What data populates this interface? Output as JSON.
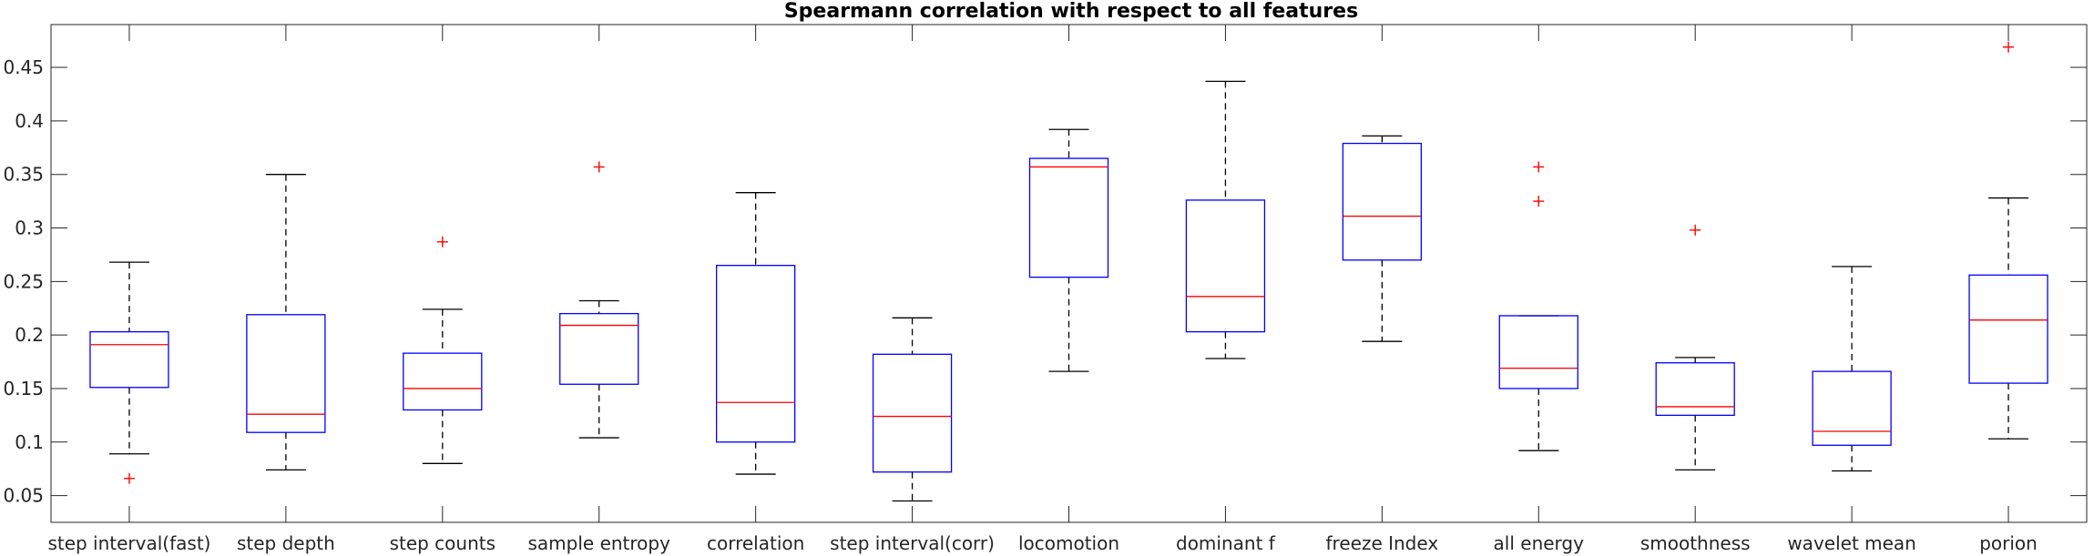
{
  "chart_data": {
    "type": "box",
    "title": "Spearmann correlation with respect to all features",
    "xlabel": "",
    "ylabel": "",
    "ylim": [
      0.025,
      0.49
    ],
    "yticks": [
      0.05,
      0.1,
      0.15,
      0.2,
      0.25,
      0.3,
      0.35,
      0.4,
      0.45
    ],
    "ytick_labels": [
      "0.05",
      "0.1",
      "0.15",
      "0.2",
      "0.25",
      "0.3",
      "0.35",
      "0.4",
      "0.45"
    ],
    "grid": false,
    "colors": {
      "box": "#0000ff",
      "median": "#ff0000",
      "whisker": "#000000",
      "outlier": "#ff0000"
    },
    "categories": [
      "step interval(fast)",
      "step depth",
      "step counts",
      "sample entropy",
      "correlation",
      "step interval(corr)",
      "locomotion",
      "dominant f",
      "freeze Index",
      "all energy",
      "smoothness",
      "wavelet mean",
      "porion"
    ],
    "boxes": [
      {
        "label": "step interval(fast)",
        "min": 0.089,
        "q1": 0.151,
        "median": 0.191,
        "q3": 0.203,
        "max": 0.268,
        "outliers": [
          0.066
        ]
      },
      {
        "label": "step depth",
        "min": 0.074,
        "q1": 0.109,
        "median": 0.126,
        "q3": 0.219,
        "max": 0.35,
        "outliers": []
      },
      {
        "label": "step counts",
        "min": 0.08,
        "q1": 0.13,
        "median": 0.15,
        "q3": 0.183,
        "max": 0.224,
        "outliers": [
          0.287
        ]
      },
      {
        "label": "sample entropy",
        "min": 0.104,
        "q1": 0.154,
        "median": 0.209,
        "q3": 0.22,
        "max": 0.232,
        "outliers": [
          0.357
        ]
      },
      {
        "label": "correlation",
        "min": 0.07,
        "q1": 0.1,
        "median": 0.137,
        "q3": 0.265,
        "max": 0.333,
        "outliers": []
      },
      {
        "label": "step interval(corr)",
        "min": 0.045,
        "q1": 0.072,
        "median": 0.124,
        "q3": 0.182,
        "max": 0.216,
        "outliers": []
      },
      {
        "label": "locomotion",
        "min": 0.166,
        "q1": 0.254,
        "median": 0.357,
        "q3": 0.365,
        "max": 0.392,
        "outliers": []
      },
      {
        "label": "dominant f",
        "min": 0.178,
        "q1": 0.203,
        "median": 0.236,
        "q3": 0.326,
        "max": 0.437,
        "outliers": []
      },
      {
        "label": "freeze Index",
        "min": 0.194,
        "q1": 0.27,
        "median": 0.311,
        "q3": 0.379,
        "max": 0.386,
        "outliers": []
      },
      {
        "label": "all energy",
        "min": 0.092,
        "q1": 0.15,
        "median": 0.169,
        "q3": 0.218,
        "max": 0.218,
        "outliers": [
          0.325,
          0.357
        ]
      },
      {
        "label": "smoothness",
        "min": 0.074,
        "q1": 0.125,
        "median": 0.133,
        "q3": 0.174,
        "max": 0.179,
        "outliers": [
          0.298
        ]
      },
      {
        "label": "wavelet mean",
        "min": 0.073,
        "q1": 0.097,
        "median": 0.11,
        "q3": 0.166,
        "max": 0.264,
        "outliers": []
      },
      {
        "label": "porion",
        "min": 0.103,
        "q1": 0.155,
        "median": 0.214,
        "q3": 0.256,
        "max": 0.328,
        "outliers": [
          0.469
        ]
      }
    ]
  }
}
